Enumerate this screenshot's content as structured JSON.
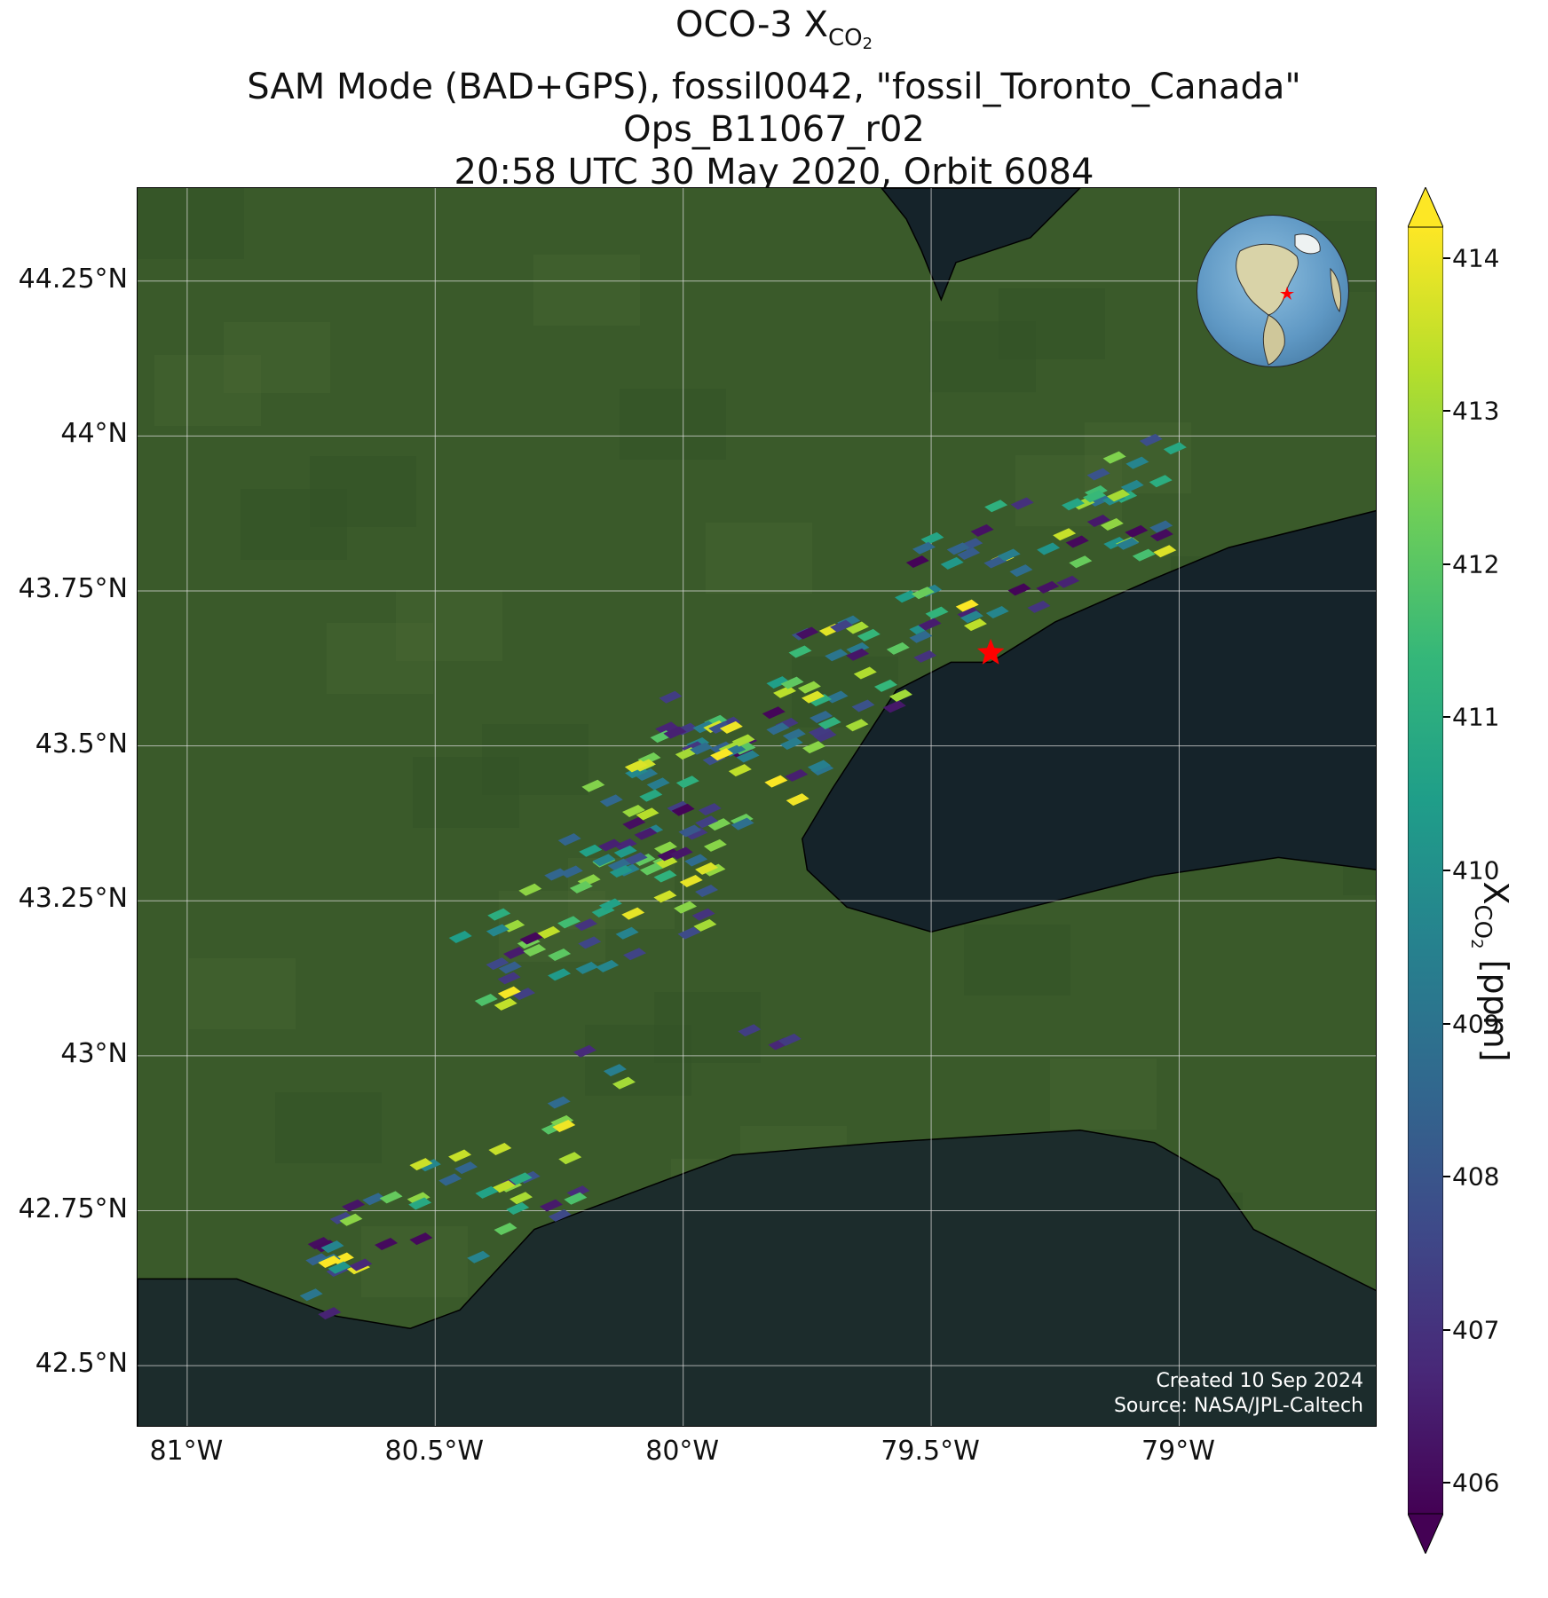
{
  "title": {
    "line1_main": "OCO-3 X",
    "line1_sub": "CO",
    "line1_subsub": "2",
    "line2": "SAM Mode (BAD+GPS), fossil0042, \"fossil_Toronto_Canada\"",
    "line3": "Ops_B11067_r02",
    "line4": "20:58 UTC 30 May 2020, Orbit 6084"
  },
  "axes": {
    "lat_labels": [
      "44.25°N",
      "44°N",
      "43.75°N",
      "43.5°N",
      "43.25°N",
      "43°N",
      "42.75°N",
      "42.5°N"
    ],
    "lat_values": [
      44.25,
      44.0,
      43.75,
      43.5,
      43.25,
      43.0,
      42.75,
      42.5
    ],
    "lon_labels": [
      "81°W",
      "80.5°W",
      "80°W",
      "79.5°W",
      "79°W"
    ],
    "lon_values": [
      -81.0,
      -80.5,
      -80.0,
      -79.5,
      -79.0
    ],
    "lat_range": [
      42.4,
      44.4
    ],
    "lon_range": [
      -81.1,
      -78.6
    ]
  },
  "target_marker": {
    "lon": -79.38,
    "lat": 43.65,
    "color": "#ff0000"
  },
  "colorbar": {
    "label_main": "X",
    "label_sub": "CO",
    "label_subsub": "2",
    "label_units": " [ppm]",
    "ticks": [
      "406",
      "407",
      "408",
      "409",
      "410",
      "411",
      "412",
      "413",
      "414"
    ],
    "tick_values": [
      406,
      407,
      408,
      409,
      410,
      411,
      412,
      413,
      414
    ],
    "range": [
      405.8,
      414.2
    ],
    "colormap": "viridis",
    "extend": "both"
  },
  "credit": {
    "line1": "Created 10 Sep 2024",
    "line2": "Source: NASA/JPL-Caltech"
  },
  "inset_globe": {
    "marker_color": "#ff0000"
  },
  "colors": {
    "land": "#3a5a2a",
    "water": "#15232a",
    "grid": "#d9d9d9"
  }
}
